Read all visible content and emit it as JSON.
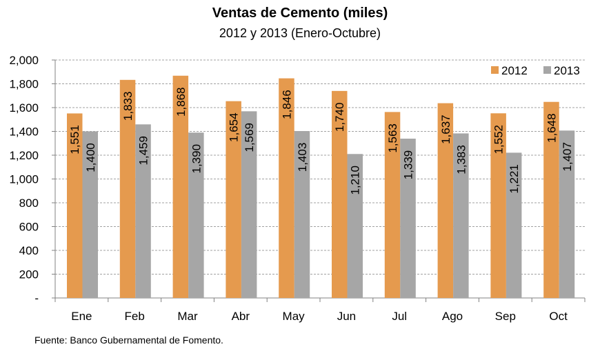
{
  "chart_data": {
    "type": "bar",
    "title": "Ventas de Cemento (miles)",
    "subtitle": "2012 y 2013 (Enero-Octubre)",
    "categories": [
      "Ene",
      "Feb",
      "Mar",
      "Abr",
      "May",
      "Jun",
      "Jul",
      "Ago",
      "Sep",
      "Oct"
    ],
    "series": [
      {
        "name": "2012",
        "values": [
          1551,
          1833,
          1868,
          1654,
          1846,
          1740,
          1563,
          1637,
          1552,
          1648
        ],
        "labels": [
          "1,551",
          "1,833",
          "1,868",
          "1,654",
          "1,846",
          "1,740",
          "1,563",
          "1,637",
          "1,552",
          "1,648"
        ],
        "color": "#E59A4E"
      },
      {
        "name": "2013",
        "values": [
          1400,
          1459,
          1390,
          1569,
          1403,
          1210,
          1339,
          1383,
          1221,
          1407
        ],
        "labels": [
          "1,400",
          "1,459",
          "1,390",
          "1,569",
          "1,403",
          "1,210",
          "1,339",
          "1,383",
          "1,221",
          "1,407"
        ],
        "color": "#A6A6A6"
      }
    ],
    "ylim": [
      0,
      2000
    ],
    "yticks": [
      0,
      200,
      400,
      600,
      800,
      1000,
      1200,
      1400,
      1600,
      1800,
      2000
    ],
    "ytick_labels": [
      "-",
      "200",
      "400",
      "600",
      "800",
      "1,000",
      "1,200",
      "1,400",
      "1,600",
      "1,800",
      "2,000"
    ],
    "grid": true,
    "legend_position": "top-right"
  },
  "footer": {
    "source": "Fuente: Banco Gubernamental de Fomento."
  }
}
